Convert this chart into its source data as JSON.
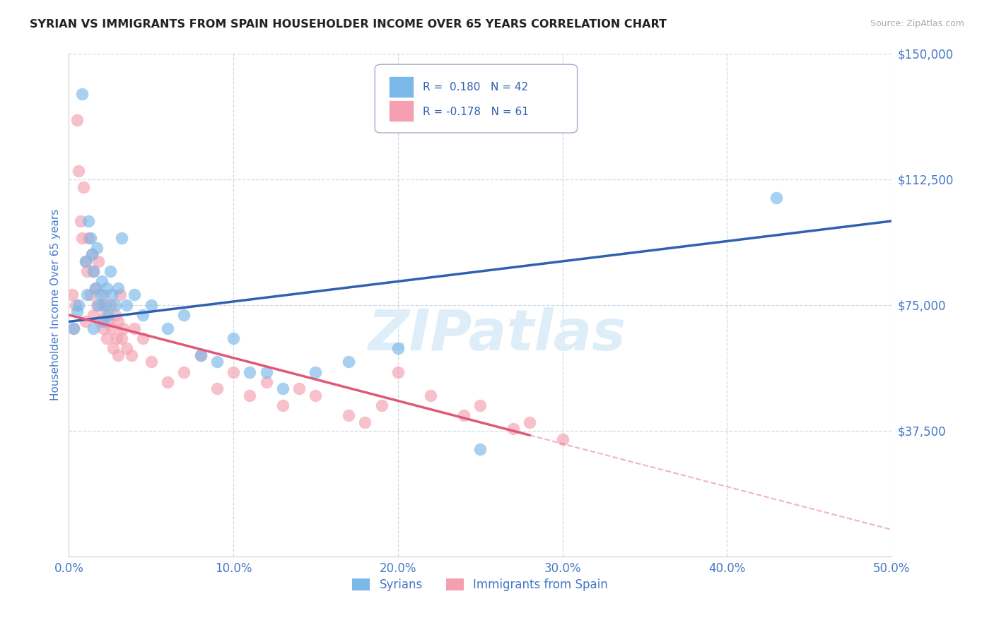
{
  "title": "SYRIAN VS IMMIGRANTS FROM SPAIN HOUSEHOLDER INCOME OVER 65 YEARS CORRELATION CHART",
  "source": "Source: ZipAtlas.com",
  "xlabel_ticks": [
    "0.0%",
    "10.0%",
    "20.0%",
    "30.0%",
    "40.0%",
    "50.0%"
  ],
  "xlabel_vals": [
    0,
    10,
    20,
    30,
    40,
    50
  ],
  "ylabel_ticks": [
    "$37,500",
    "$75,000",
    "$112,500",
    "$150,000"
  ],
  "ylabel_vals": [
    37500,
    75000,
    112500,
    150000
  ],
  "ylabel_label": "Householder Income Over 65 years",
  "xlim": [
    0,
    50
  ],
  "ylim": [
    0,
    150000
  ],
  "legend1_R": "0.180",
  "legend1_N": "42",
  "legend2_R": "-0.178",
  "legend2_N": "61",
  "legend1_label": "Syrians",
  "legend2_label": "Immigrants from Spain",
  "color_blue": "#7ab8e8",
  "color_pink": "#f4a0b0",
  "color_blue_line": "#3060b0",
  "color_pink_line": "#e05878",
  "color_legend_text": "#3060b0",
  "color_axis": "#4478c8",
  "background_color": "#ffffff",
  "grid_color": "#d0d8e8",
  "watermark_text": "ZIPatlas",
  "watermark_color": "#ddeef8",
  "blue_line_x0": 0,
  "blue_line_y0": 70000,
  "blue_line_x1": 50,
  "blue_line_y1": 100000,
  "pink_line_x0": 0,
  "pink_line_y0": 72000,
  "pink_line_x1": 50,
  "pink_line_y1": 8000,
  "pink_solid_end": 28,
  "syrians_x": [
    0.3,
    0.5,
    0.6,
    0.8,
    1.0,
    1.1,
    1.2,
    1.3,
    1.4,
    1.5,
    1.5,
    1.6,
    1.7,
    1.8,
    1.9,
    2.0,
    2.1,
    2.2,
    2.3,
    2.4,
    2.5,
    2.6,
    2.8,
    3.0,
    3.2,
    3.5,
    4.0,
    4.5,
    5.0,
    6.0,
    7.0,
    8.0,
    9.0,
    10.0,
    11.0,
    12.0,
    13.0,
    15.0,
    17.0,
    20.0,
    25.0,
    43.0
  ],
  "syrians_y": [
    68000,
    73000,
    75000,
    138000,
    88000,
    78000,
    100000,
    95000,
    90000,
    85000,
    68000,
    80000,
    92000,
    75000,
    78000,
    82000,
    70000,
    75000,
    80000,
    72000,
    85000,
    78000,
    75000,
    80000,
    95000,
    75000,
    78000,
    72000,
    75000,
    68000,
    72000,
    60000,
    58000,
    65000,
    55000,
    55000,
    50000,
    55000,
    58000,
    62000,
    32000,
    107000
  ],
  "spain_x": [
    0.2,
    0.3,
    0.4,
    0.5,
    0.6,
    0.7,
    0.8,
    0.9,
    1.0,
    1.0,
    1.1,
    1.2,
    1.3,
    1.4,
    1.5,
    1.5,
    1.6,
    1.7,
    1.8,
    1.9,
    2.0,
    2.1,
    2.1,
    2.2,
    2.3,
    2.4,
    2.5,
    2.6,
    2.7,
    2.8,
    2.9,
    3.0,
    3.0,
    3.1,
    3.2,
    3.3,
    3.5,
    3.8,
    4.0,
    4.5,
    5.0,
    6.0,
    7.0,
    8.0,
    9.0,
    10.0,
    11.0,
    12.0,
    13.0,
    14.0,
    15.0,
    17.0,
    18.0,
    19.0,
    20.0,
    22.0,
    24.0,
    25.0,
    27.0,
    28.0,
    30.0
  ],
  "spain_y": [
    78000,
    68000,
    75000,
    130000,
    115000,
    100000,
    95000,
    110000,
    88000,
    70000,
    85000,
    95000,
    78000,
    90000,
    72000,
    85000,
    80000,
    75000,
    88000,
    70000,
    75000,
    68000,
    78000,
    72000,
    65000,
    70000,
    75000,
    68000,
    62000,
    72000,
    65000,
    70000,
    60000,
    78000,
    65000,
    68000,
    62000,
    60000,
    68000,
    65000,
    58000,
    52000,
    55000,
    60000,
    50000,
    55000,
    48000,
    52000,
    45000,
    50000,
    48000,
    42000,
    40000,
    45000,
    55000,
    48000,
    42000,
    45000,
    38000,
    40000,
    35000
  ]
}
